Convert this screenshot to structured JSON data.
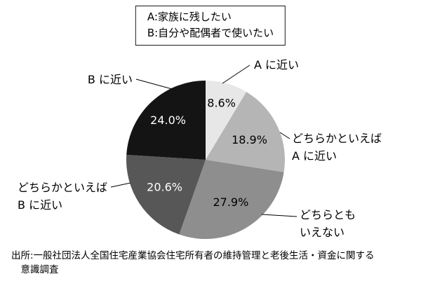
{
  "page": {
    "background": "#ffffff"
  },
  "legend": {
    "line_a": "A:家族に残したい",
    "line_b": "B:自分や配偶者で使いたい"
  },
  "source_note": "出所:一般社団法人全国住宅産業協会住宅所有者の維持管理と老後生活・資金に関する意識調査",
  "chart_data": {
    "type": "pie",
    "title": "",
    "start_angle_deg": 0,
    "direction": "clockwise",
    "unit": "%",
    "legend_note": [
      "A:家族に残したい",
      "B:自分や配偶者で使いたい"
    ],
    "slices": [
      {
        "label": "A に近い",
        "label_lines": [
          "A に近い"
        ],
        "value": 8.6,
        "pct_label": "8.6%",
        "color": "#e7e7e7",
        "text_color": "#000000"
      },
      {
        "label": "どちらかといえば A に近い",
        "label_lines": [
          "どちらかといえば",
          "A に近い"
        ],
        "value": 18.9,
        "pct_label": "18.9%",
        "color": "#b5b5b5",
        "text_color": "#000000"
      },
      {
        "label": "どちらともいえない",
        "label_lines": [
          "どちらとも",
          "いえない"
        ],
        "value": 27.9,
        "pct_label": "27.9%",
        "color": "#8e8e8e",
        "text_color": "#000000"
      },
      {
        "label": "どちらかといえば B に近い",
        "label_lines": [
          "どちらかといえば",
          "B に近い"
        ],
        "value": 20.6,
        "pct_label": "20.6%",
        "color": "#575757",
        "text_color": "#ffffff"
      },
      {
        "label": "B に近い",
        "label_lines": [
          "B に近い"
        ],
        "value": 24.0,
        "pct_label": "24.0%",
        "color": "#141414",
        "text_color": "#ffffff"
      }
    ]
  }
}
